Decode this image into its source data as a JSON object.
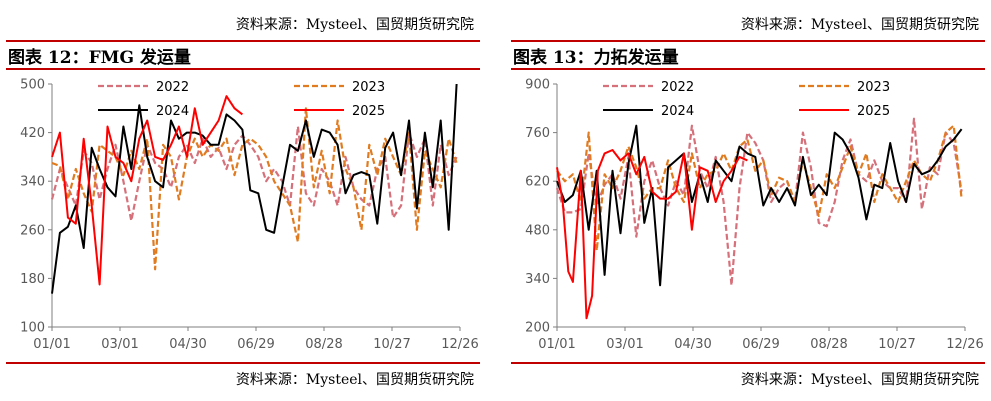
{
  "panels": [
    {
      "source_top": "资料来源：Mysteel、国贸期货研究院",
      "title": "图表 12：FMG 发运量",
      "source_bottom": "资料来源：Mysteel、国贸期货研究院"
    },
    {
      "source_top": "资料来源：Mysteel、国贸期货研究院",
      "title": "图表 13：力拓发运量",
      "source_bottom": "资料来源：Mysteel、国贸期货研究院"
    }
  ],
  "colors": {
    "accent_rule": "#c00000",
    "series_2022": "#d6707a",
    "series_2023": "#e07b20",
    "series_2024": "#000000",
    "series_2025": "#ff0000"
  },
  "chart_data": [
    {
      "type": "line",
      "title": "",
      "xlabel": "",
      "ylabel": "",
      "x_ticks": [
        "01/01",
        "03/01",
        "04/30",
        "06/29",
        "08/28",
        "10/27",
        "12/26"
      ],
      "x_range_days": [
        0,
        360
      ],
      "y_ticks": [
        100,
        180,
        260,
        340,
        420,
        500
      ],
      "ylim": [
        100,
        500
      ],
      "grid": false,
      "legend_position": "top",
      "series": [
        {
          "name": "2022",
          "style": "dashed",
          "color": "#d6707a",
          "x": [
            0,
            7,
            14,
            21,
            28,
            35,
            42,
            49,
            56,
            63,
            70,
            77,
            84,
            91,
            98,
            105,
            112,
            119,
            126,
            133,
            140,
            147,
            154,
            161,
            168,
            175,
            182,
            189,
            196,
            203,
            210,
            217,
            224,
            231,
            238,
            245,
            252,
            259,
            266,
            273,
            280,
            287,
            294,
            301,
            308,
            315,
            322,
            329,
            336,
            343,
            350,
            357
          ],
          "y": [
            310,
            360,
            330,
            300,
            390,
            370,
            310,
            360,
            400,
            340,
            275,
            340,
            400,
            370,
            360,
            330,
            380,
            400,
            370,
            410,
            380,
            395,
            360,
            400,
            415,
            400,
            380,
            340,
            360,
            340,
            300,
            430,
            320,
            300,
            360,
            340,
            300,
            380,
            330,
            310,
            300,
            360,
            380,
            280,
            300,
            420,
            380,
            410,
            300,
            400,
            350,
            380
          ]
        },
        {
          "name": "2023",
          "style": "dashed",
          "color": "#e07b20",
          "x": [
            0,
            7,
            14,
            21,
            28,
            35,
            42,
            49,
            56,
            63,
            70,
            77,
            84,
            91,
            98,
            105,
            112,
            119,
            126,
            133,
            140,
            147,
            154,
            161,
            168,
            175,
            182,
            189,
            196,
            203,
            210,
            217,
            224,
            231,
            238,
            245,
            252,
            259,
            266,
            273,
            280,
            287,
            294,
            301,
            308,
            315,
            322,
            329,
            336,
            343,
            350,
            357
          ],
          "y": [
            370,
            365,
            310,
            360,
            320,
            290,
            400,
            390,
            380,
            350,
            390,
            360,
            410,
            195,
            400,
            380,
            310,
            380,
            410,
            380,
            400,
            390,
            410,
            350,
            400,
            410,
            400,
            380,
            340,
            320,
            300,
            240,
            460,
            330,
            390,
            320,
            440,
            360,
            330,
            260,
            400,
            350,
            410,
            380,
            350,
            420,
            260,
            390,
            360,
            330,
            410,
            370
          ]
        },
        {
          "name": "2024",
          "style": "solid",
          "color": "#000000",
          "x": [
            0,
            7,
            14,
            21,
            28,
            35,
            42,
            49,
            56,
            63,
            70,
            77,
            84,
            91,
            98,
            105,
            112,
            119,
            126,
            133,
            140,
            147,
            154,
            161,
            168,
            175,
            182,
            189,
            196,
            203,
            210,
            217,
            224,
            231,
            238,
            245,
            252,
            259,
            266,
            273,
            280,
            287,
            294,
            301,
            308,
            315,
            322,
            329,
            336,
            343,
            350,
            357
          ],
          "y": [
            155,
            255,
            265,
            300,
            230,
            395,
            360,
            330,
            315,
            430,
            360,
            465,
            380,
            340,
            330,
            440,
            410,
            420,
            420,
            415,
            400,
            400,
            450,
            440,
            425,
            325,
            320,
            260,
            255,
            330,
            400,
            390,
            440,
            380,
            425,
            420,
            400,
            320,
            350,
            355,
            350,
            270,
            395,
            420,
            350,
            440,
            295,
            420,
            330,
            440,
            260,
            500
          ]
        },
        {
          "name": "2025",
          "style": "solid",
          "color": "#ff0000",
          "x": [
            0,
            7,
            14,
            21,
            28,
            35,
            42,
            49,
            56,
            63,
            70,
            77,
            84,
            91,
            98,
            105,
            112,
            119,
            126,
            133,
            140,
            147,
            154,
            161,
            168
          ],
          "y": [
            380,
            420,
            280,
            270,
            410,
            300,
            170,
            430,
            380,
            370,
            340,
            410,
            440,
            380,
            375,
            400,
            430,
            380,
            460,
            400,
            420,
            440,
            480,
            460,
            450
          ]
        }
      ]
    },
    {
      "type": "line",
      "title": "",
      "xlabel": "",
      "ylabel": "",
      "x_ticks": [
        "01/01",
        "03/01",
        "04/30",
        "06/29",
        "08/28",
        "10/27",
        "12/26"
      ],
      "x_range_days": [
        0,
        360
      ],
      "y_ticks": [
        200,
        340,
        480,
        620,
        760,
        900
      ],
      "ylim": [
        200,
        900
      ],
      "grid": false,
      "legend_position": "top",
      "series": [
        {
          "name": "2022",
          "style": "dashed",
          "color": "#d6707a",
          "x": [
            0,
            7,
            14,
            21,
            28,
            35,
            42,
            49,
            56,
            63,
            70,
            77,
            84,
            91,
            98,
            105,
            112,
            119,
            126,
            133,
            140,
            147,
            154,
            161,
            168,
            175,
            182,
            189,
            196,
            203,
            210,
            217,
            224,
            231,
            238,
            245,
            252,
            259,
            266,
            273,
            280,
            287,
            294,
            301,
            308,
            315,
            322,
            329,
            336,
            343,
            350,
            357
          ],
          "y": [
            600,
            530,
            530,
            540,
            700,
            550,
            610,
            640,
            570,
            690,
            460,
            620,
            680,
            600,
            550,
            620,
            580,
            780,
            650,
            600,
            690,
            560,
            320,
            600,
            760,
            730,
            680,
            560,
            600,
            620,
            560,
            760,
            660,
            500,
            490,
            560,
            680,
            740,
            640,
            620,
            680,
            620,
            600,
            600,
            560,
            800,
            540,
            660,
            640,
            760,
            730,
            590
          ]
        },
        {
          "name": "2023",
          "style": "dashed",
          "color": "#e07b20",
          "x": [
            0,
            7,
            14,
            21,
            28,
            35,
            42,
            49,
            56,
            63,
            70,
            77,
            84,
            91,
            98,
            105,
            112,
            119,
            126,
            133,
            140,
            147,
            154,
            161,
            168,
            175,
            182,
            189,
            196,
            203,
            210,
            217,
            224,
            231,
            238,
            245,
            252,
            259,
            266,
            273,
            280,
            287,
            294,
            301,
            308,
            315,
            322,
            329,
            336,
            343,
            350,
            357
          ],
          "y": [
            650,
            620,
            640,
            560,
            760,
            420,
            640,
            600,
            650,
            720,
            660,
            570,
            600,
            600,
            680,
            600,
            560,
            700,
            600,
            640,
            650,
            700,
            650,
            720,
            740,
            650,
            680,
            580,
            630,
            620,
            560,
            680,
            600,
            520,
            640,
            600,
            660,
            720,
            640,
            700,
            560,
            640,
            600,
            560,
            620,
            680,
            640,
            620,
            680,
            760,
            780,
            570
          ]
        },
        {
          "name": "2024",
          "style": "solid",
          "color": "#000000",
          "x": [
            0,
            7,
            14,
            21,
            28,
            35,
            42,
            49,
            56,
            63,
            70,
            77,
            84,
            91,
            98,
            105,
            112,
            119,
            126,
            133,
            140,
            147,
            154,
            161,
            168,
            175,
            182,
            189,
            196,
            203,
            210,
            217,
            224,
            231,
            238,
            245,
            252,
            259,
            266,
            273,
            280,
            287,
            294,
            301,
            308,
            315,
            322,
            329,
            336,
            343,
            350,
            357
          ],
          "y": [
            620,
            560,
            580,
            650,
            480,
            650,
            350,
            650,
            470,
            670,
            780,
            500,
            600,
            320,
            660,
            680,
            700,
            560,
            640,
            560,
            680,
            650,
            620,
            720,
            700,
            690,
            550,
            600,
            560,
            600,
            550,
            690,
            580,
            610,
            580,
            760,
            740,
            700,
            630,
            510,
            610,
            600,
            730,
            620,
            560,
            670,
            640,
            650,
            680,
            720,
            740,
            770
          ]
        },
        {
          "name": "2025",
          "style": "solid",
          "color": "#ff0000",
          "x": [
            0,
            5,
            10,
            14,
            21,
            26,
            31,
            36,
            42,
            49,
            56,
            63,
            70,
            77,
            84,
            91,
            98,
            105,
            112,
            119,
            126,
            133,
            140,
            147,
            154,
            161,
            168
          ],
          "y": [
            660,
            560,
            360,
            330,
            650,
            225,
            290,
            650,
            700,
            710,
            680,
            700,
            640,
            690,
            590,
            570,
            570,
            590,
            700,
            480,
            660,
            650,
            560,
            620,
            650,
            690,
            680
          ]
        }
      ]
    }
  ]
}
